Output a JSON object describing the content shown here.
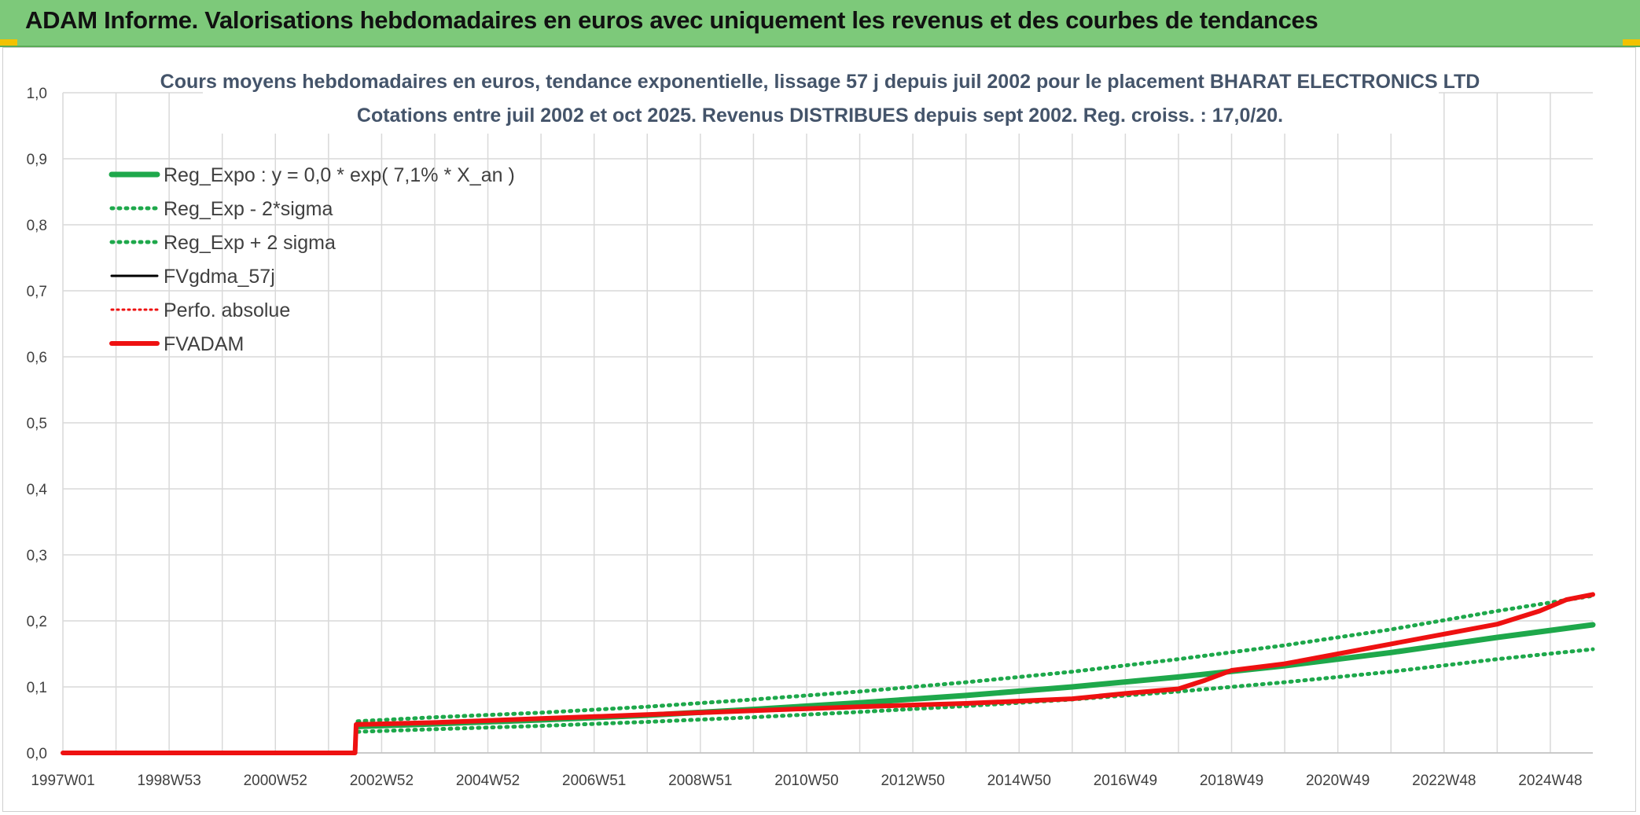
{
  "header": {
    "title": "ADAM Informe. Valorisations hebdomadaires en euros avec uniquement les revenus et des courbes de tendances"
  },
  "colors": {
    "banner": "#7dc97a",
    "regression": "#1ea84b",
    "fvgdma": "#000000",
    "fvadam": "#ee1111",
    "perfo": "#ee1111"
  },
  "chart_data": {
    "type": "line",
    "title": "Cours moyens hebdomadaires en euros, tendance exponentielle, lissage 57 j depuis juil 2002 pour le placement BHARAT ELECTRONICS LTD",
    "subtitle": "Cotations entre juil 2002 et oct 2025. Revenus DISTRIBUES depuis sept 2002. Reg. croiss. : 17,0/20.",
    "xlabel": "",
    "ylabel": "",
    "x_tick_labels": [
      "1997W01",
      "1998W53",
      "2000W52",
      "2002W52",
      "2004W52",
      "2006W51",
      "2008W51",
      "2010W50",
      "2012W50",
      "2014W50",
      "2016W49",
      "2018W49",
      "2020W49",
      "2022W48",
      "2024W48"
    ],
    "x_tick_years": [
      1997.0,
      1999.0,
      2001.0,
      2003.0,
      2005.0,
      2007.0,
      2009.0,
      2011.0,
      2013.0,
      2015.0,
      2017.0,
      2019.0,
      2021.0,
      2023.0,
      2025.0
    ],
    "xlim": [
      1997.0,
      2025.8
    ],
    "y_tick_labels": [
      "0,0",
      "0,1",
      "0,2",
      "0,3",
      "0,4",
      "0,5",
      "0,6",
      "0,7",
      "0,8",
      "0,9",
      "1,0"
    ],
    "ylim": [
      0,
      1.0
    ],
    "grid": true,
    "legend_position": "top-left",
    "series": [
      {
        "name": "Reg_Expo : y = 0,0 * exp( 7,1% *  X_an )",
        "key": "reg",
        "style": "solid-thick",
        "x": [
          2002.55,
          2004,
          2006,
          2008,
          2010,
          2012,
          2014,
          2016,
          2018,
          2020,
          2022,
          2024,
          2025.8
        ],
        "y": [
          0.04,
          0.044,
          0.05,
          0.057,
          0.066,
          0.076,
          0.087,
          0.1,
          0.115,
          0.132,
          0.152,
          0.175,
          0.194
        ]
      },
      {
        "name": "Reg_Exp - 2*sigma",
        "key": "reg_minus",
        "style": "dotted-green",
        "x": [
          2002.55,
          2004,
          2006,
          2008,
          2010,
          2012,
          2014,
          2016,
          2018,
          2020,
          2022,
          2024,
          2025.8
        ],
        "y": [
          0.032,
          0.036,
          0.041,
          0.047,
          0.054,
          0.062,
          0.071,
          0.081,
          0.093,
          0.107,
          0.123,
          0.142,
          0.157
        ]
      },
      {
        "name": "Reg_Exp + 2 sigma",
        "key": "reg_plus",
        "style": "dotted-green",
        "x": [
          2002.55,
          2004,
          2006,
          2008,
          2010,
          2012,
          2014,
          2016,
          2018,
          2020,
          2022,
          2024,
          2025.8
        ],
        "y": [
          0.048,
          0.054,
          0.061,
          0.07,
          0.081,
          0.093,
          0.107,
          0.123,
          0.142,
          0.163,
          0.187,
          0.215,
          0.238
        ]
      },
      {
        "name": "FVgdma_57j",
        "key": "fvgdma",
        "style": "solid-black",
        "x": [
          1997.0,
          2002.5,
          2002.52,
          2004,
          2006,
          2008,
          2010,
          2012,
          2014,
          2016,
          2017,
          2018,
          2018.5,
          2019,
          2020,
          2021,
          2022,
          2023,
          2024,
          2024.8,
          2025.3,
          2025.8
        ],
        "y": [
          0.0,
          0.0,
          0.045,
          0.046,
          0.052,
          0.058,
          0.064,
          0.07,
          0.075,
          0.082,
          0.09,
          0.097,
          0.11,
          0.125,
          0.135,
          0.15,
          0.165,
          0.18,
          0.195,
          0.215,
          0.232,
          0.24
        ]
      },
      {
        "name": "Perfo. absolue",
        "key": "perfo",
        "style": "dotted-red",
        "x": [],
        "y": []
      },
      {
        "name": "FVADAM",
        "key": "fvadam",
        "style": "solid-red-thick",
        "x": [
          1997.0,
          2002.5,
          2002.52,
          2004,
          2006,
          2008,
          2010,
          2012,
          2014,
          2016,
          2017,
          2018,
          2018.5,
          2019,
          2020,
          2021,
          2022,
          2023,
          2024,
          2024.8,
          2025.3,
          2025.8
        ],
        "y": [
          0.0,
          0.0,
          0.043,
          0.046,
          0.052,
          0.058,
          0.064,
          0.07,
          0.075,
          0.082,
          0.09,
          0.097,
          0.11,
          0.125,
          0.135,
          0.15,
          0.165,
          0.18,
          0.195,
          0.215,
          0.232,
          0.24
        ]
      }
    ]
  }
}
